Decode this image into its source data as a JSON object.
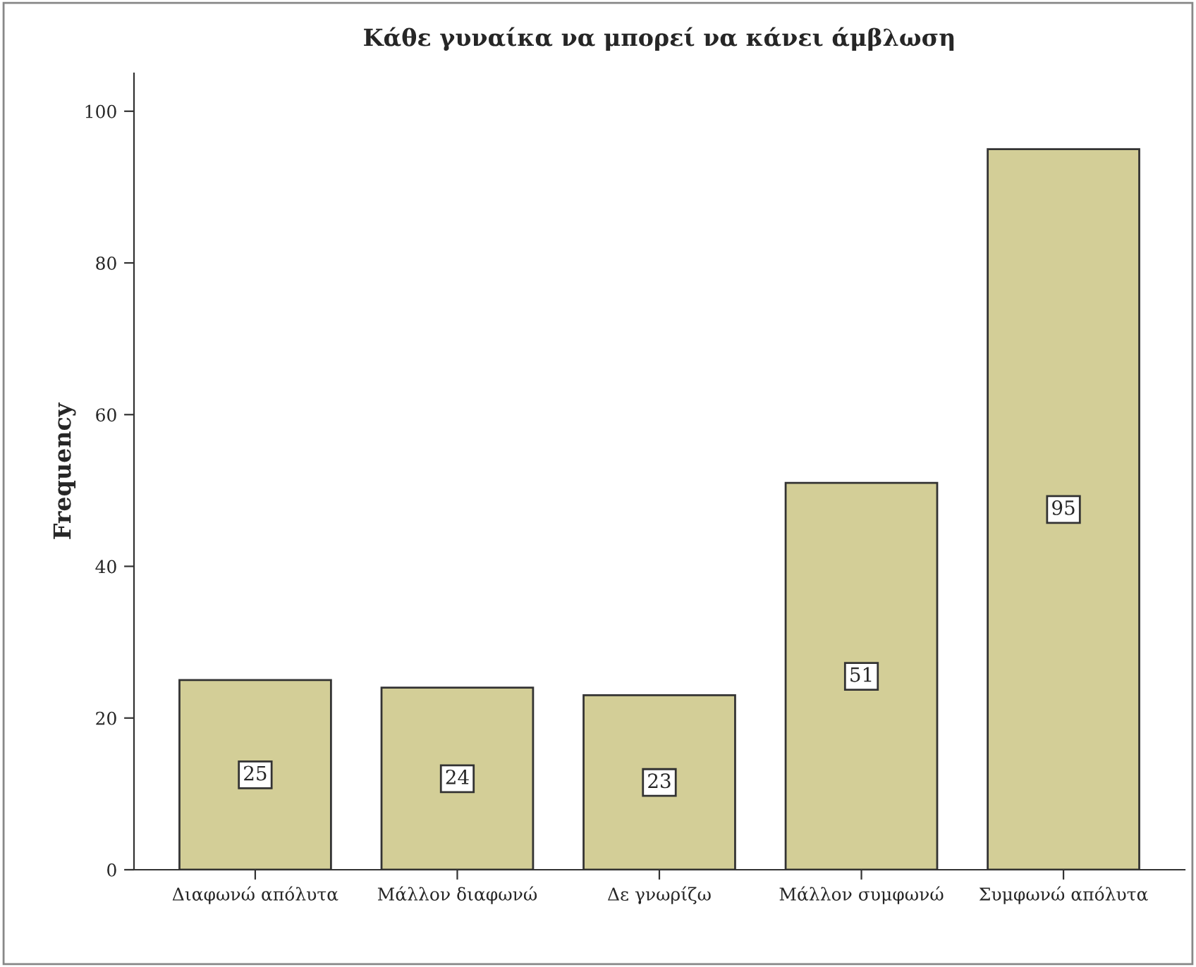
{
  "chart_data": {
    "type": "bar",
    "title": "Κάθε γυναίκα να μπορεί να κάνει άμβλωση",
    "ylabel": "Frequency",
    "categories": [
      "Διαφωνώ απόλυτα",
      "Μάλλον διαφωνώ",
      "Δε γνωρίζω",
      "Μάλλον συμφωνώ",
      "Συμφωνώ απόλυτα"
    ],
    "values": [
      25,
      24,
      23,
      51,
      95
    ],
    "color": "#d3ce97",
    "ylim": [
      0,
      105
    ],
    "yticks": [
      0,
      20,
      40,
      60,
      80,
      100
    ],
    "grid": false,
    "data_labels": true
  }
}
